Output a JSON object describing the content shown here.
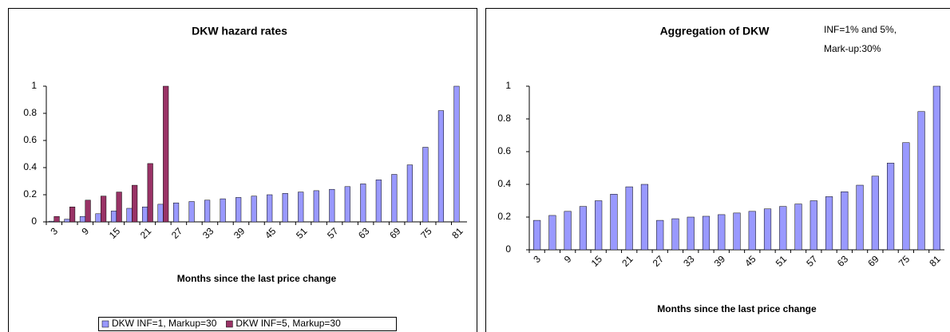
{
  "chart_data": [
    {
      "type": "bar",
      "title": "DKW hazard rates",
      "categories": [
        "3",
        null,
        "9",
        null,
        "15",
        null,
        "21",
        null,
        "27",
        null,
        "33",
        null,
        "39",
        null,
        "45",
        null,
        "51",
        null,
        "57",
        null,
        "63",
        null,
        "69",
        null,
        "75",
        null,
        "81"
      ],
      "series": [
        {
          "name": "DKW INF=1, Markup=30",
          "color": "#9999ff",
          "values": [
            0.005,
            0.02,
            0.04,
            0.06,
            0.08,
            0.1,
            0.11,
            0.13,
            0.14,
            0.15,
            0.16,
            0.17,
            0.18,
            0.19,
            0.2,
            0.21,
            0.22,
            0.23,
            0.24,
            0.26,
            0.28,
            0.31,
            0.35,
            0.42,
            0.55,
            0.82,
            1
          ]
        },
        {
          "name": "DKW INF=5, Markup=30",
          "color": "#993366",
          "values": [
            0.04,
            0.11,
            0.16,
            0.19,
            0.22,
            0.27,
            0.43,
            1,
            null,
            null,
            null,
            null,
            null,
            null,
            null,
            null,
            null,
            null,
            null,
            null,
            null,
            null,
            null,
            null,
            null,
            null,
            null
          ]
        }
      ],
      "x_label": "Months since the last price change",
      "ylim": [
        0,
        1
      ],
      "yticks": [
        0,
        0.2,
        0.4,
        0.6,
        0.8,
        1
      ],
      "legend": "bottom"
    },
    {
      "type": "bar",
      "title": "Aggregation of DKW",
      "annotations": [
        "INF=1% and 5%,",
        "Mark-up:30%"
      ],
      "categories": [
        "3",
        null,
        "9",
        null,
        "15",
        null,
        "21",
        null,
        "27",
        null,
        "33",
        null,
        "39",
        null,
        "45",
        null,
        "51",
        null,
        "57",
        null,
        "63",
        null,
        "69",
        null,
        "75",
        null,
        "81"
      ],
      "series": [
        {
          "color": "#9999ff",
          "values": [
            0.18,
            0.21,
            0.235,
            0.265,
            0.3,
            0.34,
            0.385,
            0.4,
            0.18,
            0.19,
            0.2,
            0.205,
            0.215,
            0.225,
            0.235,
            0.25,
            0.265,
            0.28,
            0.3,
            0.325,
            0.355,
            0.395,
            0.45,
            0.53,
            0.655,
            0.845,
            1
          ]
        }
      ],
      "x_label": "Months since the last price change",
      "ylim": [
        0,
        1
      ],
      "yticks": [
        0,
        0.2,
        0.4,
        0.6,
        0.8,
        1
      ]
    }
  ]
}
